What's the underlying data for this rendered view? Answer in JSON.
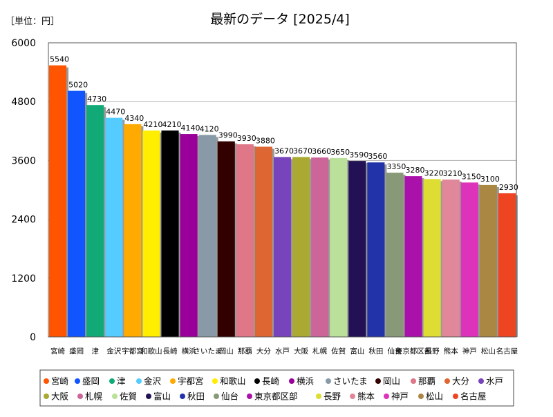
{
  "chart_data": {
    "type": "bar",
    "title": "最新のデータ [2025/4]",
    "unit_label": "［単位：円］",
    "ylim": [
      0,
      6000
    ],
    "yticks": [
      0,
      1200,
      2400,
      3600,
      4800,
      6000
    ],
    "grid": true,
    "legend_position": "bottom",
    "categories": [
      "宮崎",
      "盛岡",
      "津",
      "金沢",
      "宇都宮",
      "和歌山",
      "長崎",
      "横浜",
      "さいたま",
      "岡山",
      "那覇",
      "大分",
      "水戸",
      "大阪",
      "札幌",
      "佐賀",
      "富山",
      "秋田",
      "仙台",
      "東京都区部",
      "長野",
      "熊本",
      "神戸",
      "松山",
      "名古屋"
    ],
    "values": [
      5540,
      5020,
      4730,
      4470,
      4340,
      4210,
      4210,
      4140,
      4120,
      3990,
      3930,
      3880,
      3670,
      3670,
      3660,
      3650,
      3590,
      3560,
      3350,
      3280,
      3220,
      3210,
      3150,
      3100,
      2930
    ],
    "colors": [
      "#ff5500",
      "#1155ff",
      "#11aa77",
      "#55ccff",
      "#ffaa00",
      "#ffee00",
      "#000000",
      "#990099",
      "#889aa8",
      "#330000",
      "#e07788",
      "#dd6633",
      "#7744bb",
      "#aaaa33",
      "#cc6699",
      "#bbe099",
      "#221155",
      "#2233aa",
      "#889977",
      "#aa11aa",
      "#dddd33",
      "#e08899",
      "#dd33bb",
      "#aa8844",
      "#ee4422"
    ]
  }
}
